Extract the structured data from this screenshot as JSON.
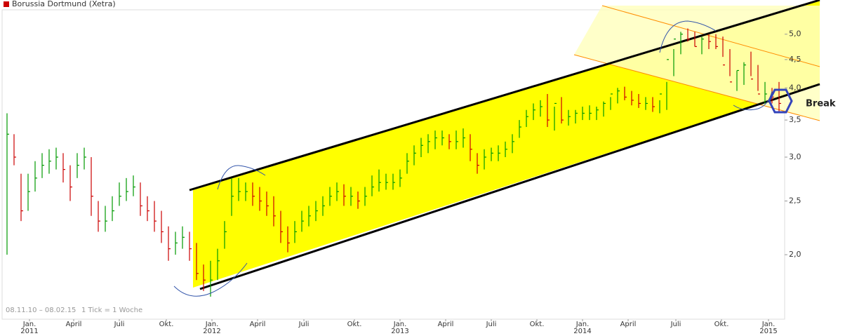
{
  "chart_data": {
    "type": "ohlc",
    "series": [
      {
        "name": "Borussia Dortmund (Xetra)",
        "color": "#cc0000",
        "up_color": "#009900",
        "down_color": "#cc0000",
        "high": [
          3.6,
          3.3,
          2.8,
          2.8,
          2.95,
          3.05,
          3.1,
          3.12,
          3.05,
          2.9,
          3.05,
          3.12,
          3.0,
          2.5,
          2.45,
          2.55,
          2.7,
          2.75,
          2.78,
          2.7,
          2.55,
          2.5,
          2.4,
          2.25,
          2.2,
          2.25,
          2.2,
          2.1,
          1.92,
          1.95,
          2.05,
          2.3,
          2.75,
          2.75,
          2.7,
          2.7,
          2.65,
          2.6,
          2.55,
          2.4,
          2.25,
          2.3,
          2.4,
          2.45,
          2.5,
          2.55,
          2.65,
          2.7,
          2.68,
          2.65,
          2.6,
          2.65,
          2.78,
          2.85,
          2.8,
          2.8,
          2.85,
          3.05,
          3.15,
          3.25,
          3.3,
          3.35,
          3.35,
          3.3,
          3.35,
          3.38,
          3.3,
          3.05,
          3.1,
          3.12,
          3.15,
          3.2,
          3.3,
          3.5,
          3.65,
          3.75,
          3.8,
          3.9,
          3.7,
          3.85,
          3.65,
          3.65,
          3.7,
          3.72,
          3.7,
          3.78,
          3.85,
          4.0,
          4.02,
          3.95,
          3.9,
          3.85,
          3.85,
          3.8,
          4.1,
          4.7,
          5.05,
          5.12,
          5.05,
          4.95,
          5.0,
          5.0,
          4.95,
          4.7,
          4.3,
          4.45,
          4.65,
          4.4,
          4.1,
          4.0,
          4.1
        ],
        "low": [
          2.0,
          2.9,
          2.3,
          2.4,
          2.6,
          2.75,
          2.8,
          2.85,
          2.7,
          2.5,
          2.75,
          2.85,
          2.35,
          2.2,
          2.2,
          2.3,
          2.45,
          2.5,
          2.55,
          2.35,
          2.3,
          2.2,
          2.1,
          1.95,
          2.0,
          2.05,
          1.95,
          1.8,
          1.72,
          1.68,
          1.8,
          2.05,
          2.35,
          2.5,
          2.5,
          2.45,
          2.4,
          2.35,
          2.25,
          2.1,
          2.02,
          2.1,
          2.2,
          2.25,
          2.3,
          2.35,
          2.45,
          2.5,
          2.45,
          2.45,
          2.42,
          2.45,
          2.55,
          2.6,
          2.62,
          2.62,
          2.65,
          2.8,
          2.9,
          3.0,
          3.05,
          3.1,
          3.15,
          3.1,
          3.1,
          3.12,
          2.95,
          2.8,
          2.85,
          2.95,
          2.95,
          3.0,
          3.05,
          3.25,
          3.4,
          3.5,
          3.55,
          3.4,
          3.35,
          3.45,
          3.42,
          3.45,
          3.5,
          3.5,
          3.5,
          3.55,
          3.65,
          3.75,
          3.8,
          3.72,
          3.68,
          3.65,
          3.62,
          3.6,
          3.65,
          4.2,
          4.6,
          4.85,
          4.75,
          4.6,
          4.7,
          4.7,
          4.55,
          4.2,
          3.95,
          4.05,
          4.2,
          3.95,
          3.75,
          3.75,
          3.6
        ],
        "close": [
          3.3,
          3.0,
          2.4,
          2.6,
          2.75,
          2.9,
          2.95,
          3.0,
          2.85,
          2.65,
          2.9,
          3.0,
          2.55,
          2.3,
          2.3,
          2.4,
          2.55,
          2.6,
          2.65,
          2.45,
          2.4,
          2.3,
          2.2,
          2.05,
          2.1,
          2.15,
          2.05,
          1.85,
          1.8,
          1.8,
          1.95,
          2.2,
          2.55,
          2.6,
          2.6,
          2.55,
          2.5,
          2.45,
          2.35,
          2.2,
          2.1,
          2.2,
          2.3,
          2.35,
          2.4,
          2.45,
          2.55,
          2.6,
          2.55,
          2.55,
          2.5,
          2.55,
          2.65,
          2.7,
          2.7,
          2.7,
          2.75,
          2.95,
          3.05,
          3.15,
          3.2,
          3.25,
          3.25,
          3.2,
          3.2,
          3.25,
          3.1,
          2.9,
          3.0,
          3.05,
          3.05,
          3.1,
          3.2,
          3.4,
          3.55,
          3.65,
          3.7,
          3.5,
          3.75,
          3.5,
          3.55,
          3.6,
          3.6,
          3.6,
          3.65,
          3.75,
          3.9,
          3.95,
          3.85,
          3.8,
          3.75,
          3.75,
          3.7,
          3.9,
          4.5,
          4.9,
          5.0,
          4.9,
          4.75,
          4.9,
          4.85,
          4.75,
          4.4,
          4.1,
          4.3,
          4.4,
          4.15,
          3.9,
          3.9,
          3.85,
          3.75
        ]
      }
    ],
    "log_scale": true,
    "ylim": [
      1.53,
      5.68
    ],
    "yticks": [
      {
        "value": 2,
        "label": "2,0"
      },
      {
        "value": 2.5,
        "label": "2,5"
      },
      {
        "value": 3,
        "label": "3,0"
      },
      {
        "value": 3.5,
        "label": "3,5"
      },
      {
        "value": 4,
        "label": "4,0"
      },
      {
        "value": 4.5,
        "label": "4,5"
      },
      {
        "value": 5,
        "label": "5,0"
      }
    ],
    "xlim": [
      0,
      111
    ],
    "xticks": [
      {
        "value": 3.7,
        "label": "Jan."
      },
      {
        "value": 10,
        "label": "April"
      },
      {
        "value": 16.5,
        "label": "Juli"
      },
      {
        "value": 23.2,
        "label": "Okt."
      },
      {
        "value": 29.7,
        "label": "Jan."
      },
      {
        "value": 36.2,
        "label": "April"
      },
      {
        "value": 42.8,
        "label": "Juli"
      },
      {
        "value": 50,
        "label": "Okt."
      },
      {
        "value": 56.5,
        "label": "Jan."
      },
      {
        "value": 63,
        "label": "April"
      },
      {
        "value": 69.5,
        "label": "Juli"
      },
      {
        "value": 76,
        "label": "Okt."
      },
      {
        "value": 82.5,
        "label": "Jan."
      },
      {
        "value": 89,
        "label": "April"
      },
      {
        "value": 95.8,
        "label": "Juli"
      },
      {
        "value": 102.3,
        "label": "Okt."
      },
      {
        "value": 109,
        "label": "Jan."
      }
    ],
    "years": [
      {
        "value": 3.7,
        "label": "2011"
      },
      {
        "value": 29.7,
        "label": "2012"
      },
      {
        "value": 56.5,
        "label": "2013"
      },
      {
        "value": 82.5,
        "label": "2014"
      },
      {
        "value": 109,
        "label": "2015"
      }
    ],
    "period": "08.11.10 – 08.02.15",
    "interval": "1 Tick = 1 Woche",
    "annotation": "Break"
  }
}
